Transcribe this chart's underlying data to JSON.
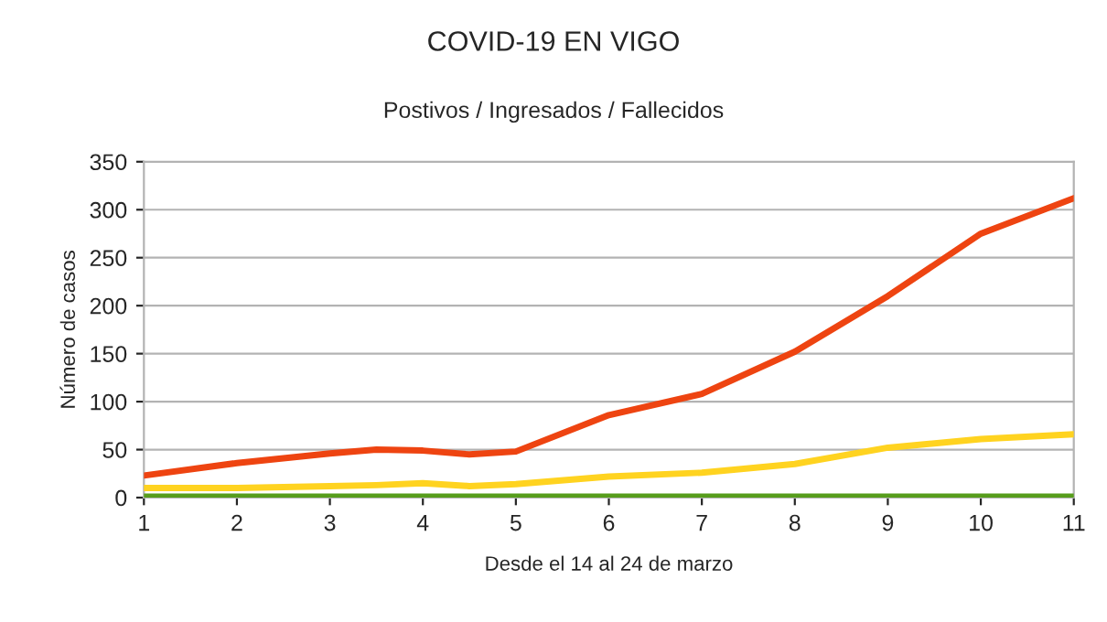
{
  "chart_data": {
    "type": "line",
    "title": "COVID-19 EN VIGO",
    "subtitle": "Postivos / Ingresados / Fallecidos",
    "xlabel": "Desde el 14 al 24 de marzo",
    "ylabel": "Número de casos",
    "x": [
      1,
      2,
      3,
      3.5,
      4,
      4.5,
      5,
      6,
      7,
      8,
      9,
      10,
      11
    ],
    "series": [
      {
        "color": "#ee4411",
        "values": [
          23,
          36,
          46,
          50,
          49,
          45,
          48,
          86,
          108,
          152,
          210,
          275,
          312
        ]
      },
      {
        "color": "#ffd320",
        "values": [
          10,
          10,
          12,
          13,
          15,
          12,
          14,
          22,
          26,
          35,
          52,
          61,
          66
        ]
      },
      {
        "color": "#579d1c",
        "values": [
          1,
          1,
          1,
          1,
          1,
          1,
          1,
          1,
          1,
          1,
          1,
          1,
          1
        ]
      }
    ],
    "xlim": [
      1,
      11
    ],
    "xticks": [
      1,
      2,
      3,
      4,
      5,
      6,
      7,
      8,
      9,
      10,
      11
    ],
    "ylim": [
      0,
      350
    ],
    "yticks": [
      0,
      50,
      100,
      150,
      200,
      250,
      300,
      350
    ],
    "grid": "y",
    "marker": "none",
    "line_style": "solid"
  }
}
